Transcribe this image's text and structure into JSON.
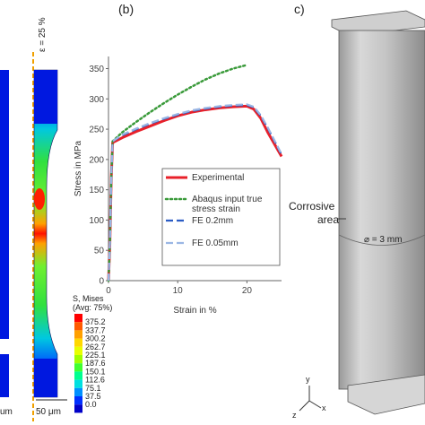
{
  "panel_b": {
    "label": "(b)",
    "chart_data": {
      "type": "line",
      "xlabel": "Strain in %",
      "ylabel": "Stress in MPa",
      "xlim": [
        0,
        25
      ],
      "ylim": [
        0,
        370
      ],
      "xticks": [
        0,
        10,
        20
      ],
      "yticks": [
        0,
        50,
        100,
        150,
        200,
        250,
        300,
        350
      ],
      "grid": false,
      "legend_position": "lower-right",
      "series": [
        {
          "name": "Experimental",
          "color": "#e8202a",
          "dash": "solid",
          "x": [
            0,
            0.2,
            0.4,
            0.6,
            2,
            4,
            6,
            8,
            10,
            12,
            14,
            16,
            18,
            20,
            21,
            22,
            23,
            24,
            25
          ],
          "y": [
            0,
            60,
            170,
            228,
            236,
            246,
            255,
            264,
            272,
            278,
            282,
            285,
            287,
            288,
            283,
            268,
            245,
            225,
            205
          ]
        },
        {
          "name": "Abaqus input true stress strain",
          "color": "#3a9a3a",
          "dash": "dot",
          "x": [
            0,
            0.2,
            0.4,
            0.6,
            2,
            4,
            6,
            8,
            10,
            12,
            14,
            16,
            18,
            20
          ],
          "y": [
            0,
            60,
            170,
            230,
            245,
            262,
            278,
            293,
            307,
            320,
            332,
            342,
            350,
            356
          ]
        },
        {
          "name": "FE 0.2mm",
          "color": "#2b5cc4",
          "dash": "long",
          "x": [
            0,
            0.2,
            0.4,
            0.6,
            2,
            4,
            6,
            8,
            10,
            12,
            14,
            16,
            18,
            20,
            21,
            22,
            23,
            24,
            25
          ],
          "y": [
            0,
            60,
            170,
            230,
            240,
            250,
            259,
            267,
            274,
            280,
            284,
            287,
            289,
            290,
            286,
            272,
            252,
            230,
            208
          ]
        },
        {
          "name": "FE 0.05mm",
          "color": "#9ab6e4",
          "dash": "long",
          "x": [
            0,
            0.2,
            0.4,
            0.6,
            2,
            4,
            6,
            8,
            10,
            12,
            14,
            16,
            18,
            20,
            21,
            22,
            23,
            24,
            25
          ],
          "y": [
            0,
            60,
            170,
            230,
            241,
            251,
            260,
            268,
            275,
            281,
            285,
            288,
            290,
            291,
            287,
            273,
            253,
            231,
            209
          ]
        }
      ],
      "legend_lines": [
        [
          "Experimental"
        ],
        [
          "Abaqus input true",
          "stress strain"
        ],
        [
          "FE 0.2mm"
        ],
        [
          "FE 0.05mm"
        ]
      ]
    }
  },
  "panel_a": {
    "strain_label": "ε = 25 %",
    "scale_label": "50 μm",
    "left_scale_fragment": "um",
    "colorbar": {
      "title": "S, Mises",
      "subtitle": "(Avg: 75%)",
      "values": [
        "375.2",
        "337.7",
        "300.2",
        "262.7",
        "225.1",
        "187.6",
        "150.1",
        "112.6",
        "75.1",
        "37.5",
        "0.0"
      ],
      "colors": [
        "#ff0000",
        "#ff5a00",
        "#ffa000",
        "#ffd800",
        "#e8ff00",
        "#a0ff00",
        "#40ff30",
        "#00ff90",
        "#00e0e0",
        "#0090ff",
        "#0030ff",
        "#0000c8"
      ]
    }
  },
  "panel_c": {
    "label": "c)",
    "corrosive_label": "Corrosive area",
    "corrosive_line1": "Corrosive",
    "corrosive_line2": "area",
    "diameter_label": "⌀ = 3 mm",
    "axes": {
      "y": "y",
      "x": "x",
      "z": "z"
    }
  }
}
